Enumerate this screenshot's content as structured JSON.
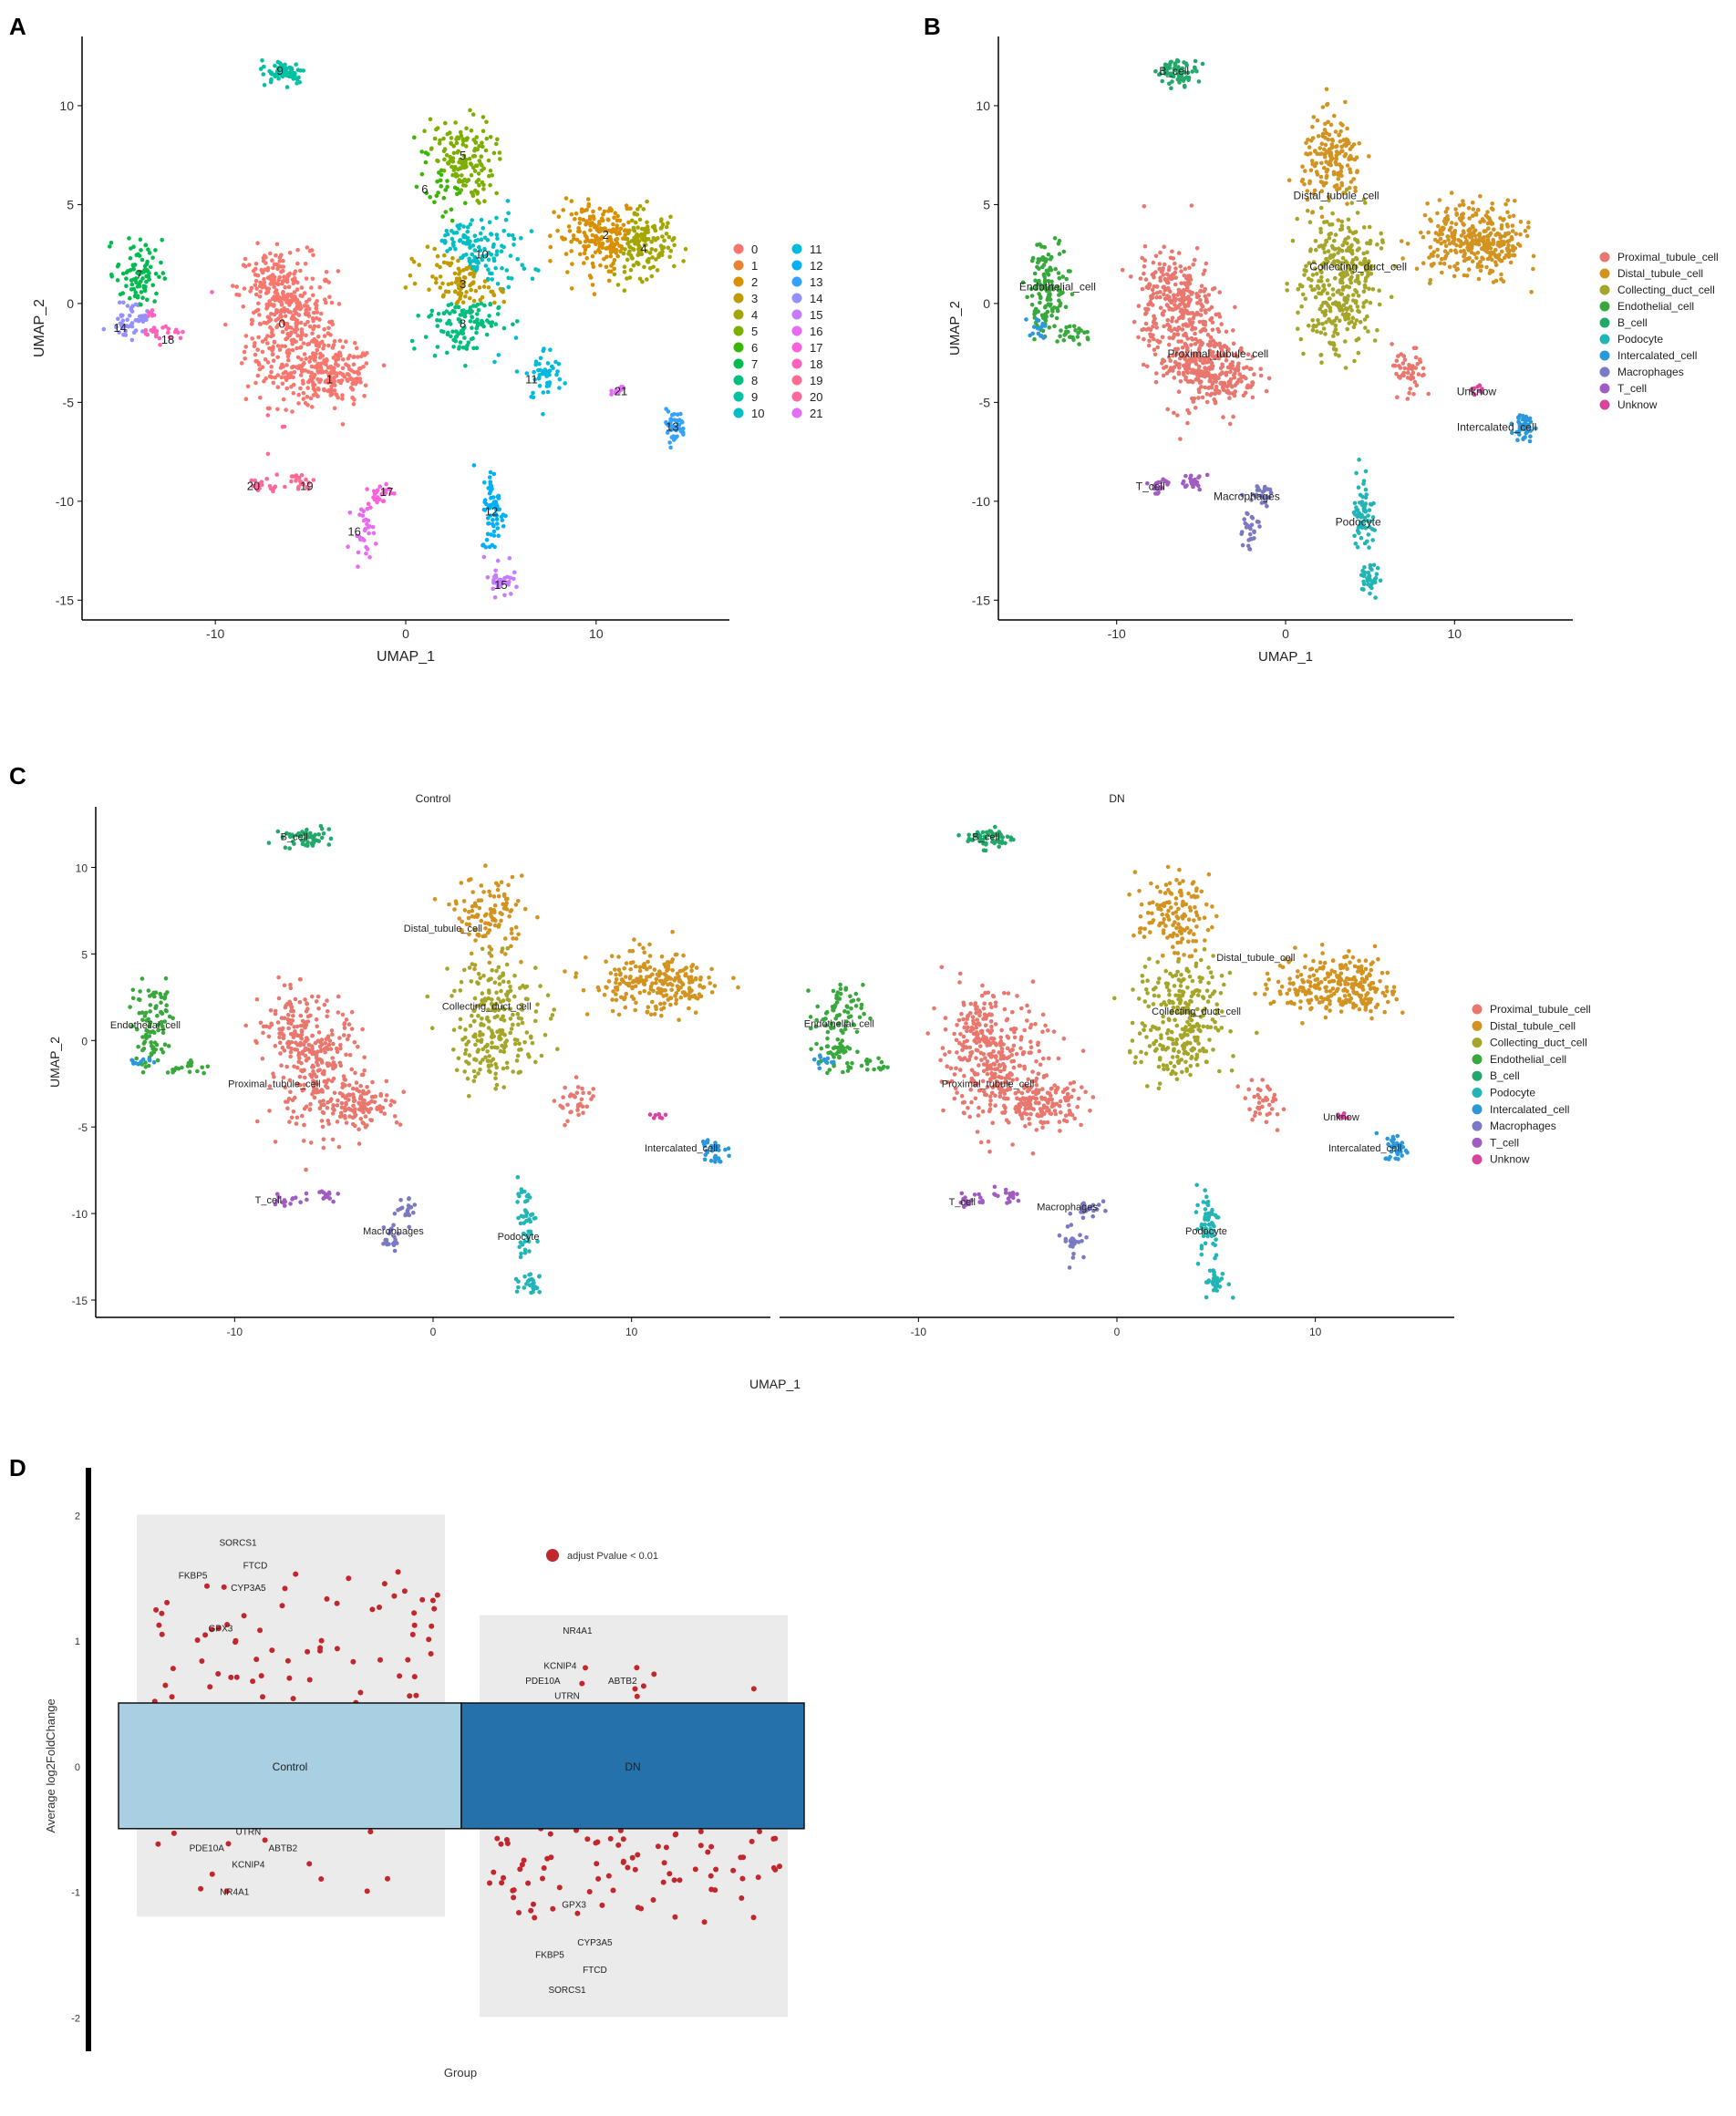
{
  "panels": {
    "A": {
      "label": "A"
    },
    "B": {
      "label": "B"
    },
    "C": {
      "label": "C"
    },
    "D": {
      "label": "D"
    }
  },
  "colors": {
    "Proximal_tubule_cell": "#E9776E",
    "Distal_tubule_cell": "#D39320",
    "Collecting_duct_cell": "#A5A52A",
    "Endothelial_cell": "#38A83C",
    "B_cell": "#22A86A",
    "Podocyte": "#22B5B5",
    "Intercalated_cell": "#2B98DC",
    "Macrophages": "#7B78C4",
    "T_cell": "#A05CC0",
    "Unknow": "#D9449C",
    "point_red": "#C1272D",
    "control_box": "#A9CFE3",
    "dn_box": "#2471AB",
    "grey_panel": "#EBEBEB"
  },
  "chart_data": [
    {
      "id": "A",
      "type": "scatter",
      "xlabel": "UMAP_1",
      "ylabel": "UMAP_2",
      "xlim": [
        -17,
        17
      ],
      "ylim": [
        -16,
        13.5
      ],
      "xticks": [
        -10,
        0,
        10
      ],
      "yticks": [
        -15,
        -10,
        -5,
        0,
        5,
        10
      ],
      "legend_position": "right",
      "legend": [
        "0",
        "1",
        "2",
        "3",
        "4",
        "5",
        "6",
        "7",
        "8",
        "9",
        "10",
        "11",
        "12",
        "13",
        "14",
        "15",
        "16",
        "17",
        "18",
        "19",
        "20",
        "21"
      ],
      "legend_colors": [
        "#F8766D",
        "#EA8331",
        "#D89000",
        "#C09B00",
        "#A3A500",
        "#7CAE00",
        "#39B600",
        "#00BB4E",
        "#00BF7D",
        "#00C1A3",
        "#00BFC4",
        "#00BAE0",
        "#00B0F6",
        "#35A2FF",
        "#9590FF",
        "#C77CFF",
        "#E76BF3",
        "#FA62DB",
        "#FF62BC",
        "#FF6C91",
        "#FF699C",
        "#E36EF6"
      ],
      "clusters": [
        {
          "label": "0",
          "x": -6.5,
          "y": -1.0,
          "color": "#F8766D"
        },
        {
          "label": "1",
          "x": -4.0,
          "y": -3.8,
          "color": "#F8766D"
        },
        {
          "label": "2",
          "x": 10.5,
          "y": 3.5,
          "color": "#D89000"
        },
        {
          "label": "3",
          "x": 3.0,
          "y": 1.0,
          "color": "#C09B00"
        },
        {
          "label": "4",
          "x": 12.5,
          "y": 2.8,
          "color": "#A3A500"
        },
        {
          "label": "5",
          "x": 3.0,
          "y": 7.5,
          "color": "#7CAE00"
        },
        {
          "label": "6",
          "x": 1.0,
          "y": 5.8,
          "color": "#39B600"
        },
        {
          "label": "7",
          "x": -14.0,
          "y": 1.5,
          "color": "#00BB4E"
        },
        {
          "label": "8",
          "x": 3.0,
          "y": -1.0,
          "color": "#00BF7D"
        },
        {
          "label": "9",
          "x": -6.6,
          "y": 11.8,
          "color": "#00C1A3"
        },
        {
          "label": "10",
          "x": 4.0,
          "y": 2.5,
          "color": "#00BFC4"
        },
        {
          "label": "11",
          "x": 6.6,
          "y": -3.8,
          "color": "#00BAE0"
        },
        {
          "label": "12",
          "x": 4.5,
          "y": -10.5,
          "color": "#00B0F6"
        },
        {
          "label": "13",
          "x": 14.0,
          "y": -6.2,
          "color": "#35A2FF"
        },
        {
          "label": "14",
          "x": -15.0,
          "y": -1.2,
          "color": "#9590FF"
        },
        {
          "label": "15",
          "x": 5.0,
          "y": -14.2,
          "color": "#C77CFF"
        },
        {
          "label": "16",
          "x": -2.7,
          "y": -11.5,
          "color": "#E76BF3"
        },
        {
          "label": "17",
          "x": -1.0,
          "y": -9.5,
          "color": "#FA62DB"
        },
        {
          "label": "18",
          "x": -12.5,
          "y": -1.8,
          "color": "#FF62BC"
        },
        {
          "label": "19",
          "x": -5.2,
          "y": -9.2,
          "color": "#FF6C91"
        },
        {
          "label": "20",
          "x": -8.0,
          "y": -9.2,
          "color": "#FF699C"
        },
        {
          "label": "21",
          "x": 11.3,
          "y": -4.4,
          "color": "#E36EF6"
        }
      ]
    },
    {
      "id": "B",
      "type": "scatter",
      "xlabel": "UMAP_1",
      "ylabel": "UMAP_2",
      "xlim": [
        -17,
        17
      ],
      "ylim": [
        -16,
        13.5
      ],
      "xticks": [
        -10,
        0,
        10
      ],
      "yticks": [
        -15,
        -10,
        -5,
        0,
        5,
        10
      ],
      "legend_position": "right",
      "legend": [
        "Proximal_tubule_cell",
        "Distal_tubule_cell",
        "Collecting_duct_cell",
        "Endothelial_cell",
        "B_cell",
        "Podocyte",
        "Intercalated_cell",
        "Macrophages",
        "T_cell",
        "Unknow"
      ],
      "annotations": [
        {
          "text": "B_cell",
          "x": -6.6,
          "y": 11.8
        },
        {
          "text": "Distal_tubule_cell",
          "x": 3.0,
          "y": 5.5
        },
        {
          "text": "Collecting_duct_cell",
          "x": 4.3,
          "y": 1.9
        },
        {
          "text": "Endothelial_cell",
          "x": -13.5,
          "y": 0.9
        },
        {
          "text": "Proximal_tubule_cell",
          "x": -4.0,
          "y": -2.5
        },
        {
          "text": "Unknow",
          "x": 11.3,
          "y": -4.4
        },
        {
          "text": "Intercalated_cell",
          "x": 12.5,
          "y": -6.2
        },
        {
          "text": "T_cell",
          "x": -8.0,
          "y": -9.2
        },
        {
          "text": "Macrophages",
          "x": -2.3,
          "y": -9.7
        },
        {
          "text": "Podocyte",
          "x": 4.3,
          "y": -11.0
        }
      ]
    },
    {
      "id": "C",
      "type": "scatter",
      "xlabel": "UMAP_1",
      "ylabel": "UMAP_2",
      "facets": [
        "Control",
        "DN"
      ],
      "xlim": [
        -17,
        17
      ],
      "ylim": [
        -16,
        13.5
      ],
      "xticks": [
        -10,
        0,
        10
      ],
      "yticks": [
        -15,
        -10,
        -5,
        0,
        5,
        10
      ],
      "legend_position": "right",
      "legend": [
        "Proximal_tubule_cell",
        "Distal_tubule_cell",
        "Collecting_duct_cell",
        "Endothelial_cell",
        "B_cell",
        "Podocyte",
        "Intercalated_cell",
        "Macrophages",
        "T_cell",
        "Unknow"
      ],
      "annotations_control": [
        {
          "text": "B_cell",
          "x": -7.0,
          "y": 11.8
        },
        {
          "text": "Distal_tubule_cell",
          "x": 0.5,
          "y": 6.5
        },
        {
          "text": "Collecting_duct_cell",
          "x": 2.7,
          "y": 2.0
        },
        {
          "text": "Endothelial_cell",
          "x": -14.5,
          "y": 0.9
        },
        {
          "text": "Proximal_tubule_cell",
          "x": -8.0,
          "y": -2.5
        },
        {
          "text": "Intercalated_cell",
          "x": 12.5,
          "y": -6.2
        },
        {
          "text": "T_cell",
          "x": -8.3,
          "y": -9.2
        },
        {
          "text": "Macrophages",
          "x": -2.0,
          "y": -11.0
        },
        {
          "text": "Podocyte",
          "x": 4.3,
          "y": -11.3
        }
      ],
      "annotations_dn": [
        {
          "text": "B_cell",
          "x": -6.6,
          "y": 11.8
        },
        {
          "text": "Distal_tubule_cell",
          "x": 7.0,
          "y": 4.8
        },
        {
          "text": "Collecting_duct_cell",
          "x": 4.0,
          "y": 1.7
        },
        {
          "text": "Endothelial_cell",
          "x": -14.0,
          "y": 1.0
        },
        {
          "text": "Proximal_tubule_cell",
          "x": -6.5,
          "y": -2.5
        },
        {
          "text": "Unknow",
          "x": 11.3,
          "y": -4.4
        },
        {
          "text": "Intercalated_cell",
          "x": 12.5,
          "y": -6.2
        },
        {
          "text": "T_cell",
          "x": -7.8,
          "y": -9.3
        },
        {
          "text": "Macrophages",
          "x": -2.5,
          "y": -9.6
        },
        {
          "text": "Podocyte",
          "x": 4.5,
          "y": -11.0
        }
      ]
    },
    {
      "id": "D",
      "type": "scatter",
      "xlabel": "Group",
      "ylabel": "Average log2FoldChange",
      "ylim": [
        -2.2,
        2.3
      ],
      "yticks": [
        -2,
        -1,
        0,
        1,
        2
      ],
      "groups": [
        "Control",
        "DN"
      ],
      "legend": [
        "adjust Pvalue < 0.01"
      ],
      "grey_range_control": [
        -1.2,
        2.0
      ],
      "grey_range_dn": [
        -2.0,
        1.2
      ],
      "band": [
        -0.5,
        0.5
      ],
      "labels_control": [
        {
          "text": "SORCS1",
          "x": 0.45,
          "y": 1.78
        },
        {
          "text": "FTCD",
          "x": 0.5,
          "y": 1.6
        },
        {
          "text": "FKBP5",
          "x": 0.32,
          "y": 1.52
        },
        {
          "text": "CYP3A5",
          "x": 0.48,
          "y": 1.42
        },
        {
          "text": "GPX3",
          "x": 0.4,
          "y": 1.1
        },
        {
          "text": "UTRN",
          "x": 0.48,
          "y": -0.52
        },
        {
          "text": "PDE10A",
          "x": 0.36,
          "y": -0.65
        },
        {
          "text": "ABTB2",
          "x": 0.58,
          "y": -0.65
        },
        {
          "text": "KCNIP4",
          "x": 0.48,
          "y": -0.78
        },
        {
          "text": "NR4A1",
          "x": 0.44,
          "y": -1.0
        }
      ],
      "labels_dn": [
        {
          "text": "NR4A1",
          "x": 1.43,
          "y": 1.08
        },
        {
          "text": "KCNIP4",
          "x": 1.38,
          "y": 0.8
        },
        {
          "text": "PDE10A",
          "x": 1.33,
          "y": 0.68
        },
        {
          "text": "ABTB2",
          "x": 1.56,
          "y": 0.68
        },
        {
          "text": "UTRN",
          "x": 1.4,
          "y": 0.56
        },
        {
          "text": "GPX3",
          "x": 1.42,
          "y": -1.1
        },
        {
          "text": "CYP3A5",
          "x": 1.48,
          "y": -1.4
        },
        {
          "text": "FKBP5",
          "x": 1.35,
          "y": -1.5
        },
        {
          "text": "FTCD",
          "x": 1.48,
          "y": -1.62
        },
        {
          "text": "SORCS1",
          "x": 1.4,
          "y": -1.78
        }
      ]
    }
  ],
  "legend_A_title": "",
  "facet_titles": {
    "control": "Control",
    "dn": "DN"
  },
  "legend_D": {
    "label": "adjust Pvalue < 0.01"
  },
  "box_labels": {
    "control": "Control",
    "dn": "DN"
  }
}
